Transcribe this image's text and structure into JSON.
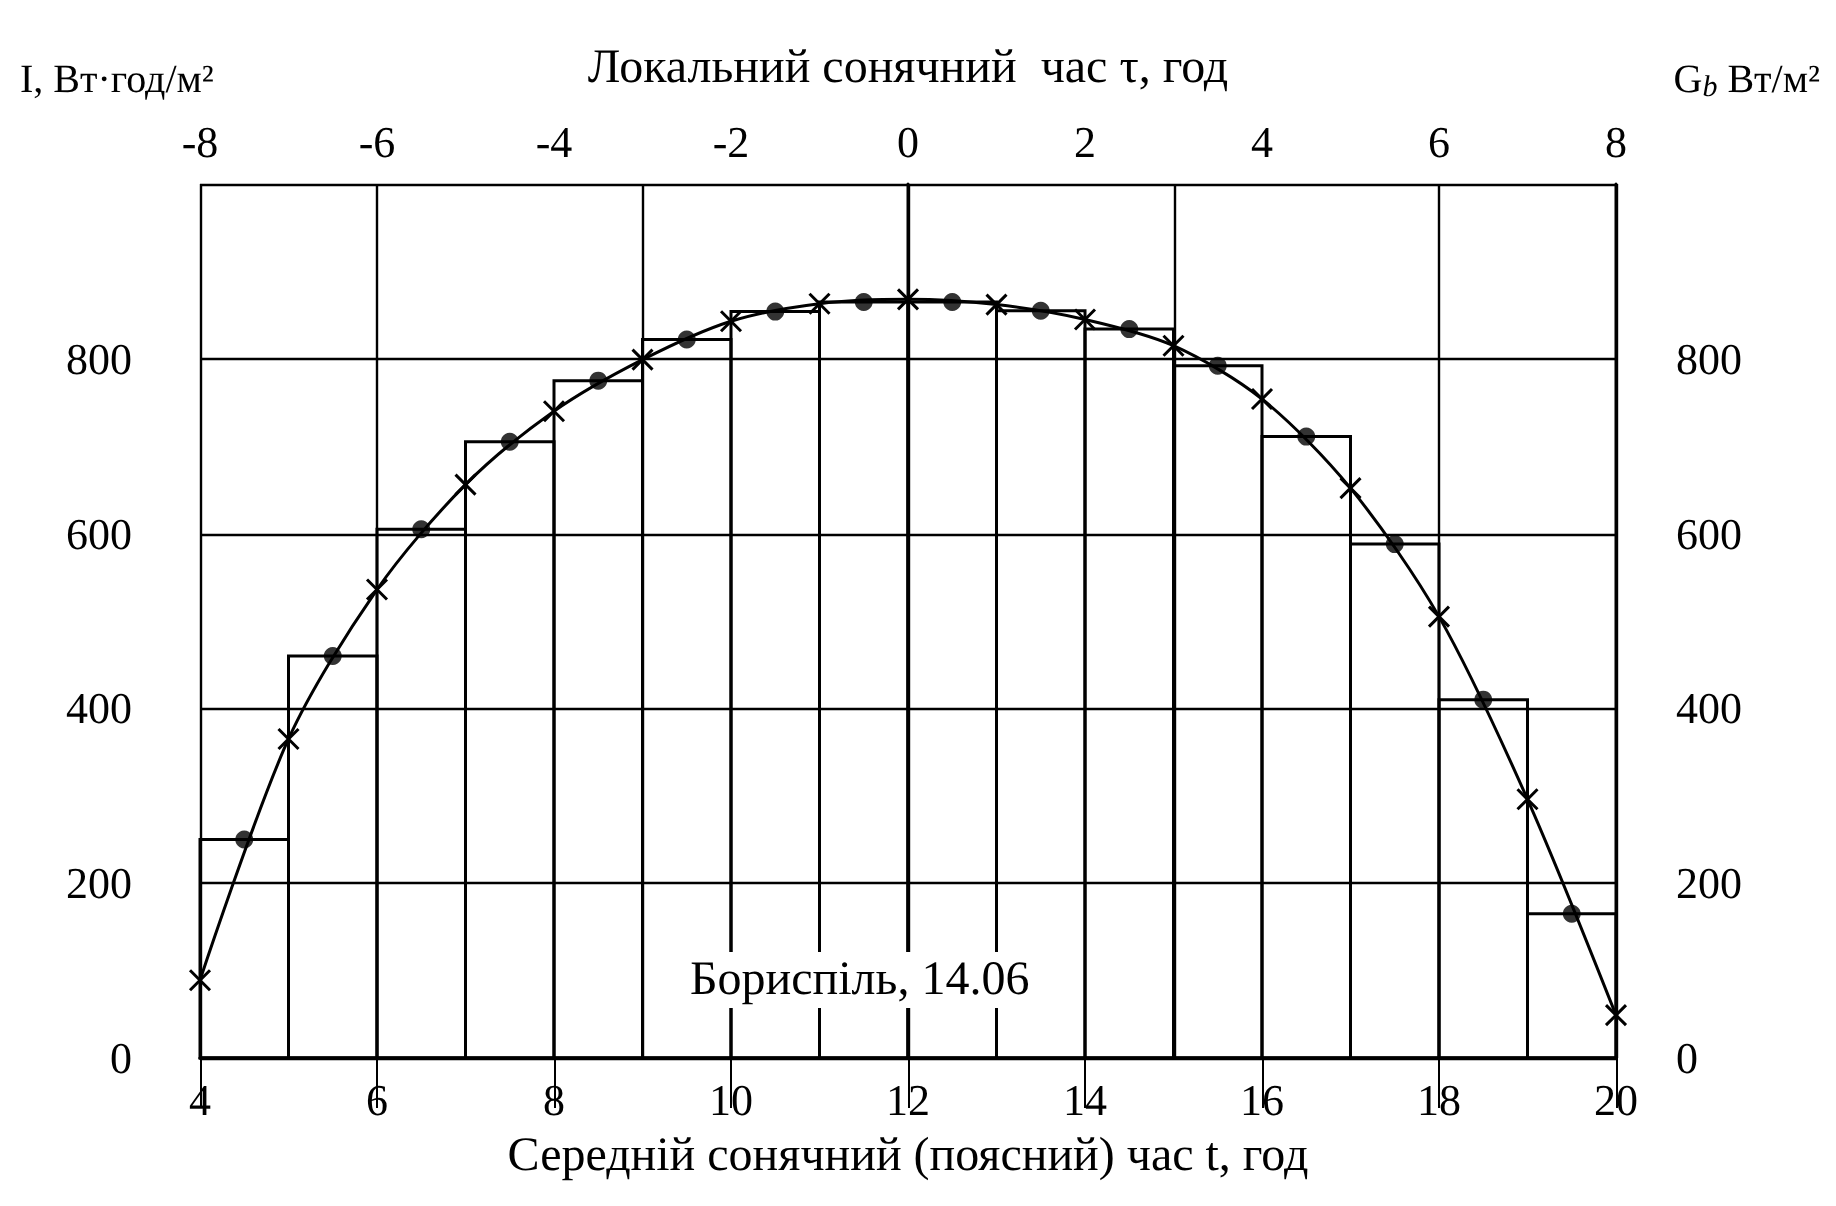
{
  "chart_data": {
    "type": "histogram",
    "x2label": "Локальний сонячний  час τ, год",
    "xlabel": "Середній сонячний (поясний) час t, год",
    "ylabel": "I, Вт·год/м²",
    "y2label": "G$_{b}$ Вт/м²",
    "annotations": [
      "Бориспіль, 14.06"
    ],
    "bins": [
      4,
      5,
      6,
      7,
      8,
      9,
      10,
      11,
      12,
      13,
      14,
      15,
      16,
      17,
      18,
      19,
      20
    ],
    "values": [
      250,
      460,
      605,
      705,
      775,
      822,
      854,
      865,
      865,
      855,
      834,
      792,
      711,
      588,
      410,
      165
    ],
    "color": "#000000",
    "series": [
      {
        "type": "line",
        "marker": "cross",
        "color": "#000000",
        "x": [
          4,
          5,
          6,
          7,
          8,
          9,
          10,
          11,
          12,
          13,
          14,
          15,
          16,
          17,
          18,
          19,
          20
        ],
        "values": [
          89,
          365,
          536,
          656,
          740,
          799,
          843,
          863,
          868,
          862,
          845,
          815,
          754,
          652,
          505,
          296,
          49
        ]
      },
      {
        "type": "scatter",
        "marker": "circle",
        "color": "#000000",
        "x": [
          4.5,
          5.5,
          6.5,
          7.5,
          8.5,
          9.5,
          10.5,
          11.5,
          12.5,
          13.5,
          14.5,
          15.5,
          16.5,
          17.5,
          18.5,
          19.5
        ],
        "values": [
          250,
          460,
          605,
          705,
          775,
          822,
          854,
          865,
          865,
          855,
          834,
          792,
          711,
          588,
          410,
          165
        ]
      }
    ],
    "xlim": [
      4,
      20
    ],
    "xticks": [
      4,
      6,
      8,
      10,
      12,
      14,
      16,
      18,
      20
    ],
    "x2lim": [
      -8,
      8
    ],
    "x2ticks": [
      -8,
      -6,
      -4,
      -2,
      0,
      2,
      4,
      6,
      8
    ],
    "ylim": [
      0,
      1000
    ],
    "yticks": [
      0,
      200,
      400,
      600,
      800
    ],
    "y2lim": [
      0,
      1000
    ],
    "y2ticks": [
      0,
      200,
      400,
      600,
      800
    ],
    "grid": true
  }
}
